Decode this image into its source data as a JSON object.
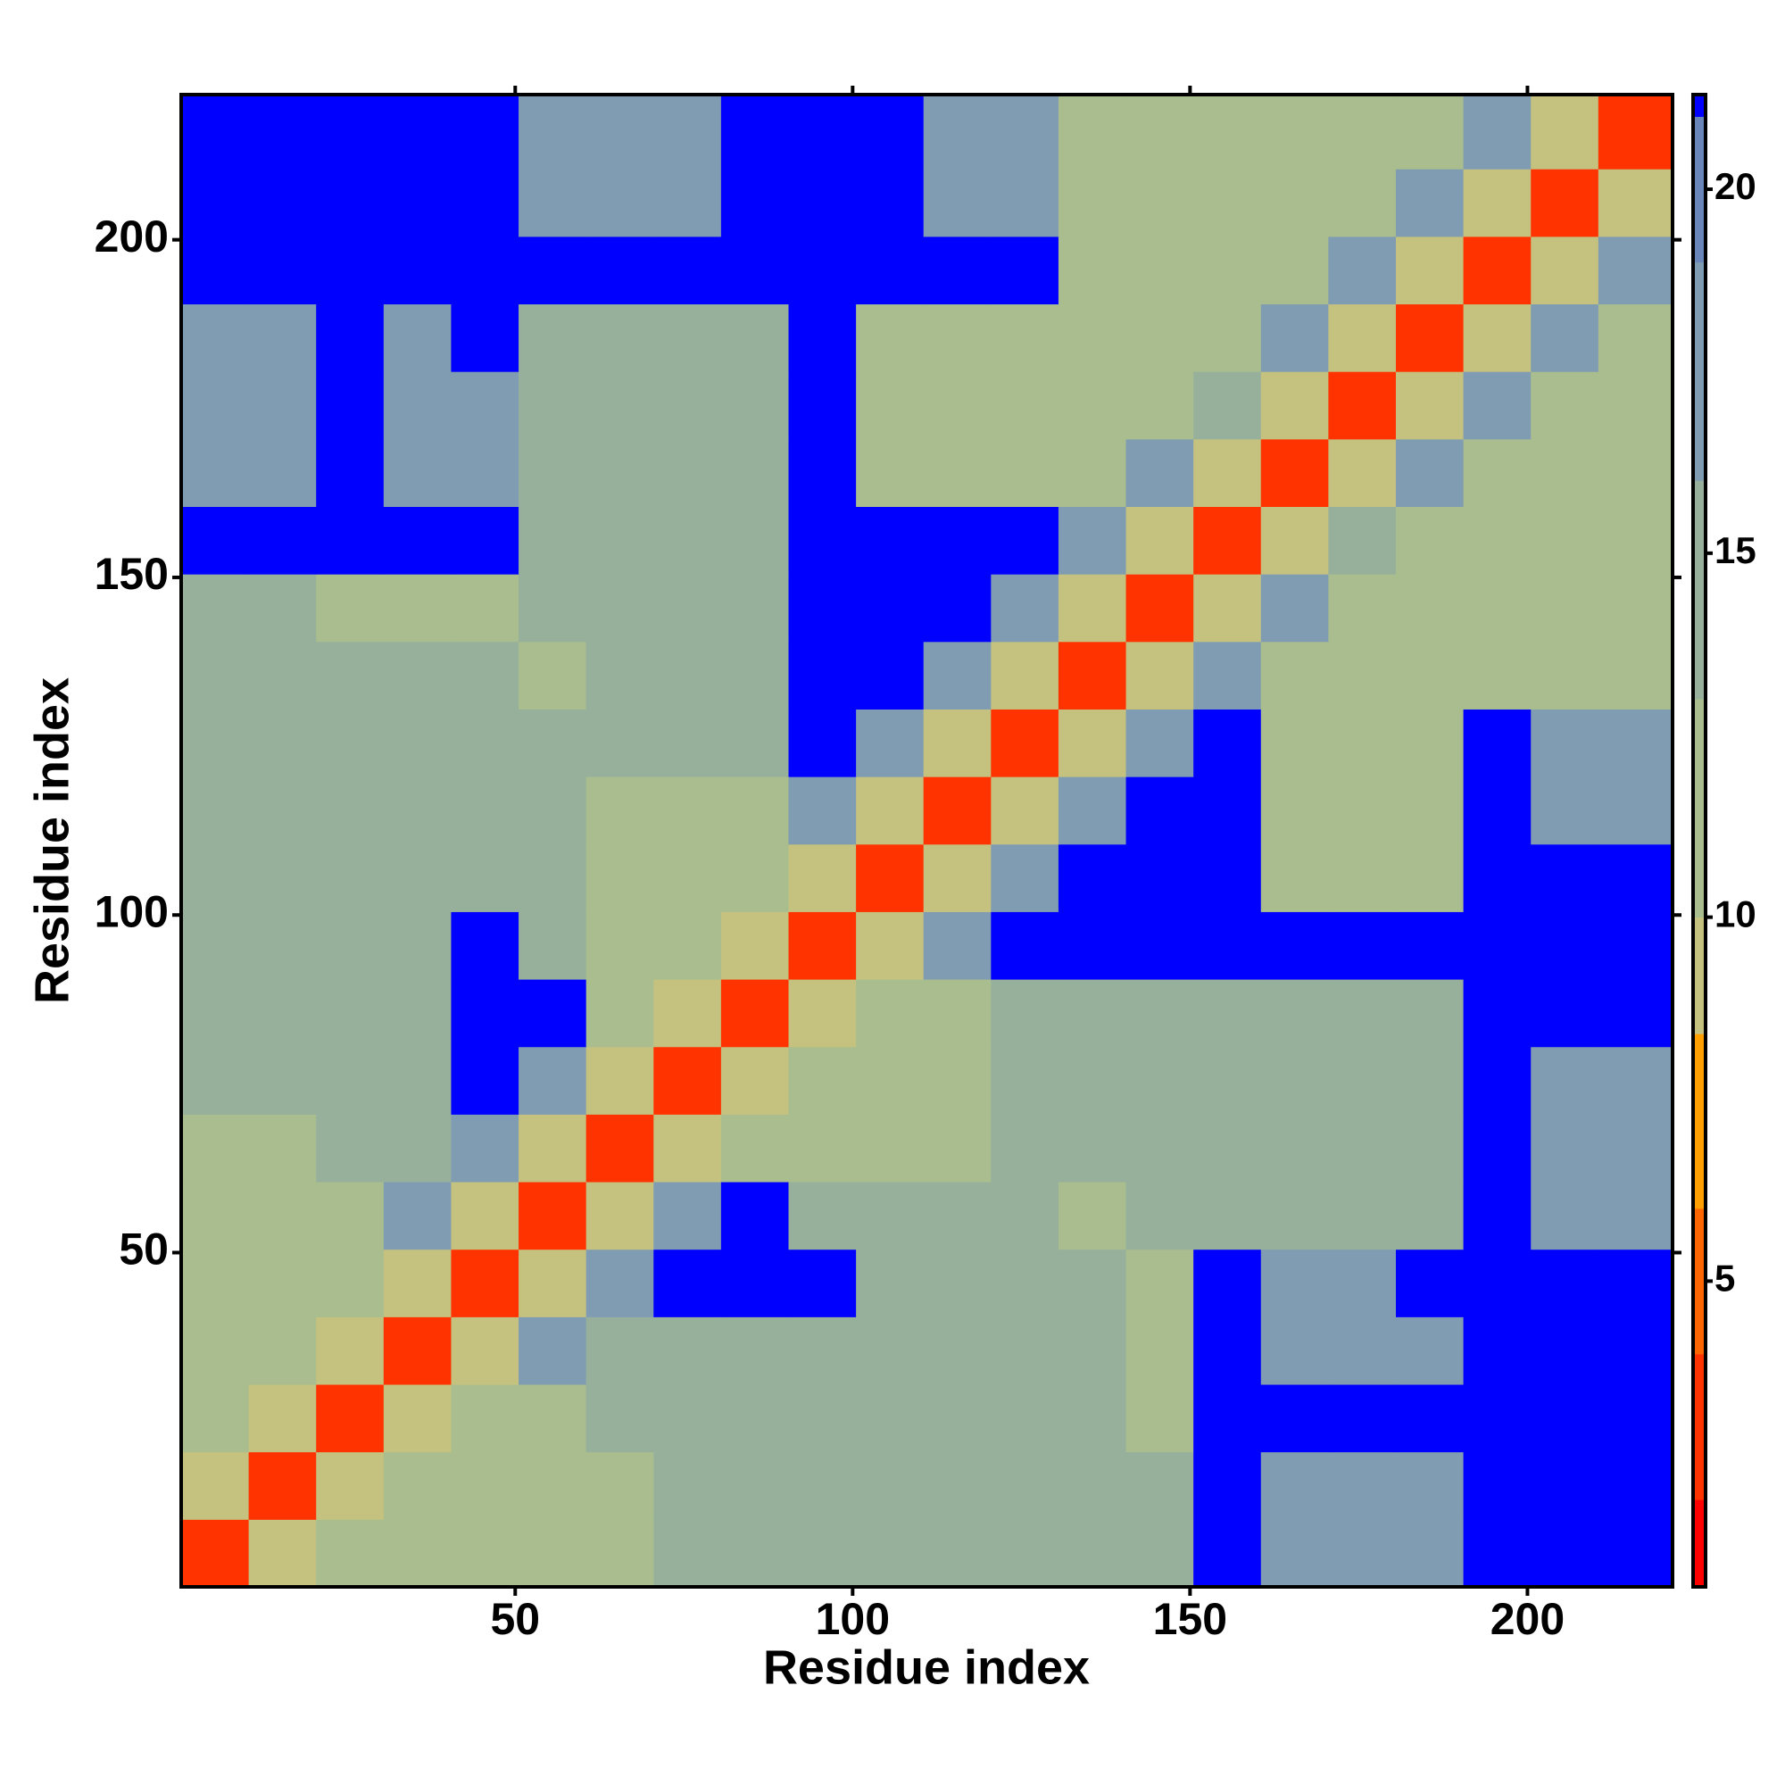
{
  "chart_data": {
    "type": "heatmap",
    "xlabel": "Residue index",
    "ylabel": "Residue index",
    "xlim": [
      0.5,
      221.5
    ],
    "ylim": [
      0.5,
      221.5
    ],
    "xticks": [
      50,
      100,
      150,
      200
    ],
    "yticks": [
      50,
      100,
      150,
      200
    ],
    "xbins": [
      0.5,
      10.5,
      20.5,
      30.5,
      40.5,
      50.5,
      60.5,
      70.5,
      80.5,
      90.5,
      100.5,
      110.5,
      120.5,
      130.5,
      140.5,
      150.5,
      160.5,
      170.5,
      180.5,
      190.5,
      200.5,
      210.5,
      221.5
    ],
    "ybins": [
      0.5,
      10.5,
      20.5,
      30.5,
      40.5,
      50.5,
      60.5,
      70.5,
      80.5,
      90.5,
      100.5,
      110.5,
      120.5,
      130.5,
      140.5,
      150.5,
      160.5,
      170.5,
      180.5,
      190.5,
      200.5,
      210.5,
      221.5
    ],
    "z": [
      [
        3,
        9,
        12,
        12,
        12,
        10,
        10,
        13,
        13,
        13,
        13,
        13,
        13,
        13,
        13,
        22,
        17,
        17,
        17,
        22,
        22,
        22
      ],
      [
        9,
        3,
        9,
        10,
        12,
        10,
        10,
        14,
        14,
        14,
        13,
        13,
        13,
        13,
        13,
        22,
        17,
        17,
        17,
        22,
        22,
        22
      ],
      [
        12,
        9,
        3,
        9,
        12,
        12,
        14,
        14,
        14,
        14,
        13,
        13,
        13,
        13,
        12,
        22,
        22,
        22,
        22,
        22,
        22,
        22
      ],
      [
        12,
        10,
        9,
        3,
        9,
        18,
        14,
        14,
        14,
        14,
        13,
        13,
        13,
        13,
        12,
        22,
        17,
        17,
        17,
        22,
        22,
        22
      ],
      [
        12,
        12,
        12,
        9,
        3,
        9,
        18,
        22,
        22,
        22,
        13,
        13,
        13,
        13,
        12,
        22,
        17,
        17,
        22,
        22,
        22,
        22
      ],
      [
        10,
        10,
        12,
        18,
        9,
        3,
        9,
        18,
        22,
        13,
        13,
        13,
        13,
        10,
        13,
        13,
        13,
        13,
        13,
        22,
        18,
        18
      ],
      [
        10,
        10,
        14,
        14,
        18,
        9,
        3,
        9,
        12,
        12,
        12,
        12,
        13,
        13,
        13,
        13,
        13,
        13,
        13,
        22,
        18,
        18
      ],
      [
        13,
        14,
        14,
        14,
        22,
        18,
        9,
        3,
        9,
        12,
        12,
        12,
        13,
        13,
        13,
        13,
        13,
        13,
        13,
        22,
        18,
        18
      ],
      [
        13,
        14,
        14,
        14,
        22,
        22,
        12,
        9,
        3,
        9,
        12,
        12,
        13,
        13,
        13,
        13,
        13,
        13,
        13,
        22,
        22,
        22
      ],
      [
        13,
        14,
        14,
        14,
        22,
        13,
        12,
        12,
        9,
        3,
        9,
        18,
        22,
        22,
        22,
        22,
        22,
        22,
        22,
        22,
        22,
        22
      ],
      [
        13,
        13,
        13,
        13,
        13,
        13,
        12,
        12,
        12,
        9,
        3,
        9,
        18,
        22,
        22,
        22,
        12,
        12,
        12,
        22,
        22,
        22
      ],
      [
        13,
        13,
        13,
        13,
        13,
        13,
        12,
        12,
        12,
        18,
        9,
        3,
        9,
        18,
        22,
        22,
        12,
        12,
        12,
        22,
        18,
        18
      ],
      [
        13,
        13,
        13,
        13,
        13,
        13,
        13,
        13,
        13,
        22,
        18,
        9,
        3,
        9,
        18,
        22,
        12,
        12,
        12,
        22,
        18,
        18
      ],
      [
        13,
        13,
        13,
        13,
        13,
        10,
        13,
        13,
        13,
        22,
        22,
        18,
        9,
        3,
        9,
        18,
        12,
        10,
        12,
        12,
        12,
        12
      ],
      [
        13,
        13,
        12,
        12,
        12,
        13,
        13,
        13,
        13,
        22,
        22,
        22,
        18,
        9,
        3,
        9,
        18,
        12,
        12,
        12,
        12,
        12
      ],
      [
        22,
        22,
        22,
        22,
        22,
        13,
        13,
        13,
        13,
        22,
        22,
        22,
        22,
        18,
        9,
        3,
        9,
        13,
        12,
        12,
        12,
        12
      ],
      [
        17,
        17,
        22,
        17,
        17,
        13,
        13,
        13,
        13,
        22,
        12,
        12,
        12,
        12,
        18,
        9,
        3,
        9,
        18,
        12,
        12,
        12
      ],
      [
        17,
        17,
        22,
        17,
        17,
        13,
        13,
        13,
        13,
        22,
        12,
        12,
        12,
        10,
        12,
        13,
        9,
        3,
        9,
        18,
        12,
        12
      ],
      [
        17,
        17,
        22,
        17,
        22,
        13,
        13,
        13,
        13,
        22,
        12,
        12,
        12,
        12,
        12,
        12,
        18,
        9,
        3,
        9,
        18,
        12
      ],
      [
        22,
        22,
        22,
        22,
        22,
        22,
        22,
        22,
        22,
        22,
        22,
        22,
        22,
        12,
        12,
        12,
        12,
        18,
        9,
        3,
        9,
        18
      ],
      [
        22,
        22,
        22,
        22,
        22,
        18,
        18,
        18,
        22,
        22,
        22,
        18,
        18,
        12,
        12,
        12,
        12,
        12,
        18,
        9,
        3,
        9
      ],
      [
        22,
        22,
        22,
        22,
        22,
        18,
        18,
        18,
        22,
        22,
        22,
        18,
        18,
        12,
        12,
        12,
        12,
        12,
        12,
        18,
        9,
        3
      ]
    ],
    "levels": [
      0.8,
      2,
      4,
      6,
      8.4,
      10,
      13,
      16,
      19,
      21,
      21.3
    ],
    "level_colors": [
      "#ff0000",
      "#ff3300",
      "#ff6600",
      "#ffa000",
      "#c4c27e",
      "#a9bd8e",
      "#97b09c",
      "#809cb2",
      "#6a86b8",
      "#0000ff"
    ],
    "cticks": [
      5,
      10,
      15,
      20
    ]
  }
}
